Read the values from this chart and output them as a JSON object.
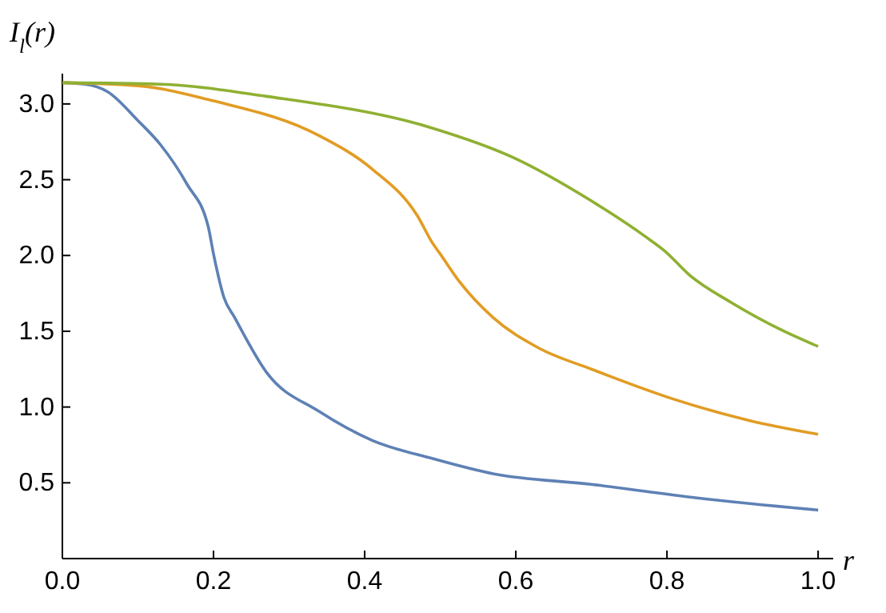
{
  "chart_data": {
    "type": "line",
    "xlabel": "r",
    "ylabel": "I$_{l}$(r)",
    "xlim": [
      0,
      1.02
    ],
    "ylim": [
      0,
      3.2
    ],
    "xticks": [
      {
        "value": 0,
        "label": "0.0"
      },
      0.2,
      0.4,
      0.6,
      0.8,
      {
        "value": 1,
        "label": "1.0"
      }
    ],
    "yticks": [
      0.5,
      {
        "value": 1,
        "label": "1.0"
      },
      1.5,
      {
        "value": 2,
        "label": "2.0"
      },
      2.5,
      {
        "value": 3,
        "label": "3.0"
      }
    ],
    "grid": false,
    "marker": "none",
    "line_style": "solid",
    "series": [
      {
        "color": "#5e81b5",
        "x": [
          0,
          0.03,
          0.06,
          0.1,
          0.13,
          0.165,
          0.193,
          0.2,
          0.214,
          0.228,
          0.27,
          0.34,
          0.41,
          0.49,
          0.57,
          0.7,
          0.84,
          1
        ],
        "values": [
          3.14,
          3.13,
          3.08,
          2.89,
          2.73,
          2.47,
          2.19,
          2.01,
          1.72,
          1.59,
          1.23,
          0.97,
          0.78,
          0.66,
          0.56,
          0.49,
          0.4,
          0.32
        ]
      },
      {
        "color": "#e19c24",
        "x": [
          0,
          0.1,
          0.2,
          0.34,
          0.41,
          0.47,
          0.49,
          0.5,
          0.525,
          0.57,
          0.63,
          0.7,
          0.81,
          0.91,
          1
        ],
        "values": [
          3.14,
          3.12,
          3.02,
          2.79,
          2.57,
          2.26,
          2.08,
          2.01,
          1.83,
          1.59,
          1.39,
          1.25,
          1.05,
          0.91,
          0.82
        ]
      },
      {
        "color": "#8fb032",
        "x": [
          0,
          0.13,
          0.27,
          0.49,
          0.595,
          0.7,
          0.77,
          0.797,
          0.83,
          0.885,
          0.955,
          1
        ],
        "values": [
          3.14,
          3.13,
          3.05,
          2.84,
          2.65,
          2.36,
          2.13,
          2.03,
          1.87,
          1.69,
          1.5,
          1.4
        ]
      }
    ]
  }
}
